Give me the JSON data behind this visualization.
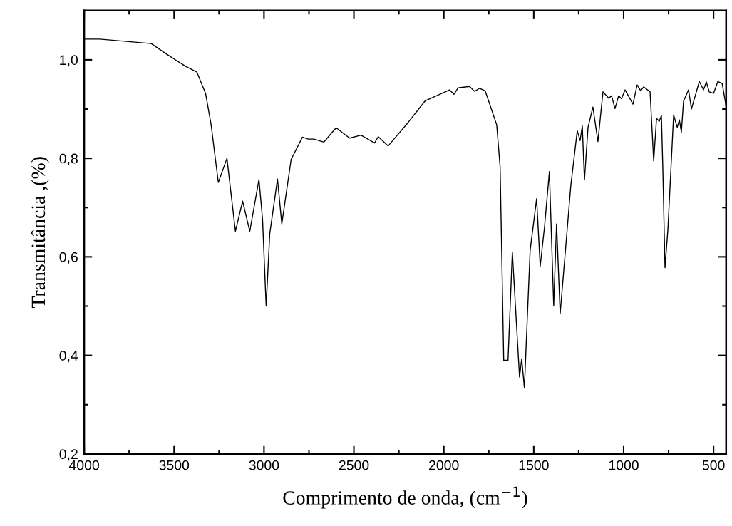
{
  "chart_data": {
    "type": "line",
    "xlabel": "Comprimento de onda, (cm$^{−1}$)",
    "ylabel": "Transmitância ,(%)",
    "xlim": [
      4000,
      430
    ],
    "ylim": [
      0.2,
      1.1
    ],
    "xticks": [
      4000,
      3500,
      3000,
      2500,
      2000,
      1500,
      1000,
      500,
      {
        "value": 3750,
        "label": null
      },
      {
        "value": 3250,
        "label": null
      },
      {
        "value": 2750,
        "label": null
      },
      {
        "value": 2250,
        "label": null
      },
      {
        "value": 1750,
        "label": null
      },
      {
        "value": 1250,
        "label": null
      },
      {
        "value": 750,
        "label": null
      }
    ],
    "yticks": [
      {
        "value": 0.2,
        "label": "0,2"
      },
      {
        "value": 0.4,
        "label": "0,4"
      },
      {
        "value": 0.6,
        "label": "0,6"
      },
      {
        "value": 0.8,
        "label": "0,8"
      },
      {
        "value": 1.0,
        "label": "1,0"
      },
      {
        "value": 0.3,
        "label": null
      },
      {
        "value": 0.5,
        "label": null
      },
      {
        "value": 0.7,
        "label": null
      },
      {
        "value": 0.9,
        "label": null
      }
    ],
    "grid": false,
    "marker": "none",
    "line_style": "solid",
    "series": [
      {
        "color": "#000000",
        "x": [
          4000,
          3913,
          3627,
          3548,
          3437,
          3373,
          3325,
          3294,
          3254,
          3206,
          3159,
          3119,
          3079,
          3028,
          3008,
          2988,
          2968,
          2925,
          2901,
          2849,
          2786,
          2754,
          2722,
          2667,
          2599,
          2524,
          2460,
          2385,
          2365,
          2310,
          2198,
          2103,
          1968,
          1944,
          1921,
          1857,
          1829,
          1802,
          1770,
          1706,
          1687,
          1667,
          1643,
          1619,
          1579,
          1567,
          1552,
          1520,
          1484,
          1464,
          1440,
          1413,
          1389,
          1373,
          1353,
          1333,
          1294,
          1258,
          1242,
          1230,
          1218,
          1198,
          1171,
          1143,
          1115,
          1083,
          1067,
          1048,
          1028,
          1012,
          992,
          948,
          925,
          905,
          889,
          853,
          833,
          817,
          802,
          790,
          782,
          770,
          754,
          722,
          702,
          690,
          679,
          667,
          639,
          623,
          579,
          556,
          540,
          524,
          500,
          476,
          452,
          430
        ],
        "values": [
          1.042,
          1.042,
          1.033,
          1.013,
          0.987,
          0.975,
          0.932,
          0.868,
          0.751,
          0.8,
          0.652,
          0.713,
          0.652,
          0.757,
          0.676,
          0.5,
          0.647,
          0.758,
          0.667,
          0.798,
          0.843,
          0.839,
          0.839,
          0.833,
          0.862,
          0.841,
          0.847,
          0.831,
          0.844,
          0.825,
          0.873,
          0.917,
          0.939,
          0.93,
          0.943,
          0.946,
          0.936,
          0.942,
          0.937,
          0.868,
          0.783,
          0.39,
          0.39,
          0.61,
          0.356,
          0.393,
          0.334,
          0.613,
          0.718,
          0.581,
          0.661,
          0.773,
          0.501,
          0.667,
          0.485,
          0.572,
          0.744,
          0.856,
          0.836,
          0.866,
          0.756,
          0.863,
          0.904,
          0.834,
          0.935,
          0.922,
          0.927,
          0.901,
          0.927,
          0.921,
          0.939,
          0.91,
          0.949,
          0.937,
          0.945,
          0.935,
          0.795,
          0.881,
          0.875,
          0.887,
          0.779,
          0.578,
          0.655,
          0.888,
          0.863,
          0.878,
          0.853,
          0.916,
          0.939,
          0.9,
          0.956,
          0.939,
          0.955,
          0.935,
          0.932,
          0.956,
          0.952,
          0.905
        ]
      }
    ]
  }
}
